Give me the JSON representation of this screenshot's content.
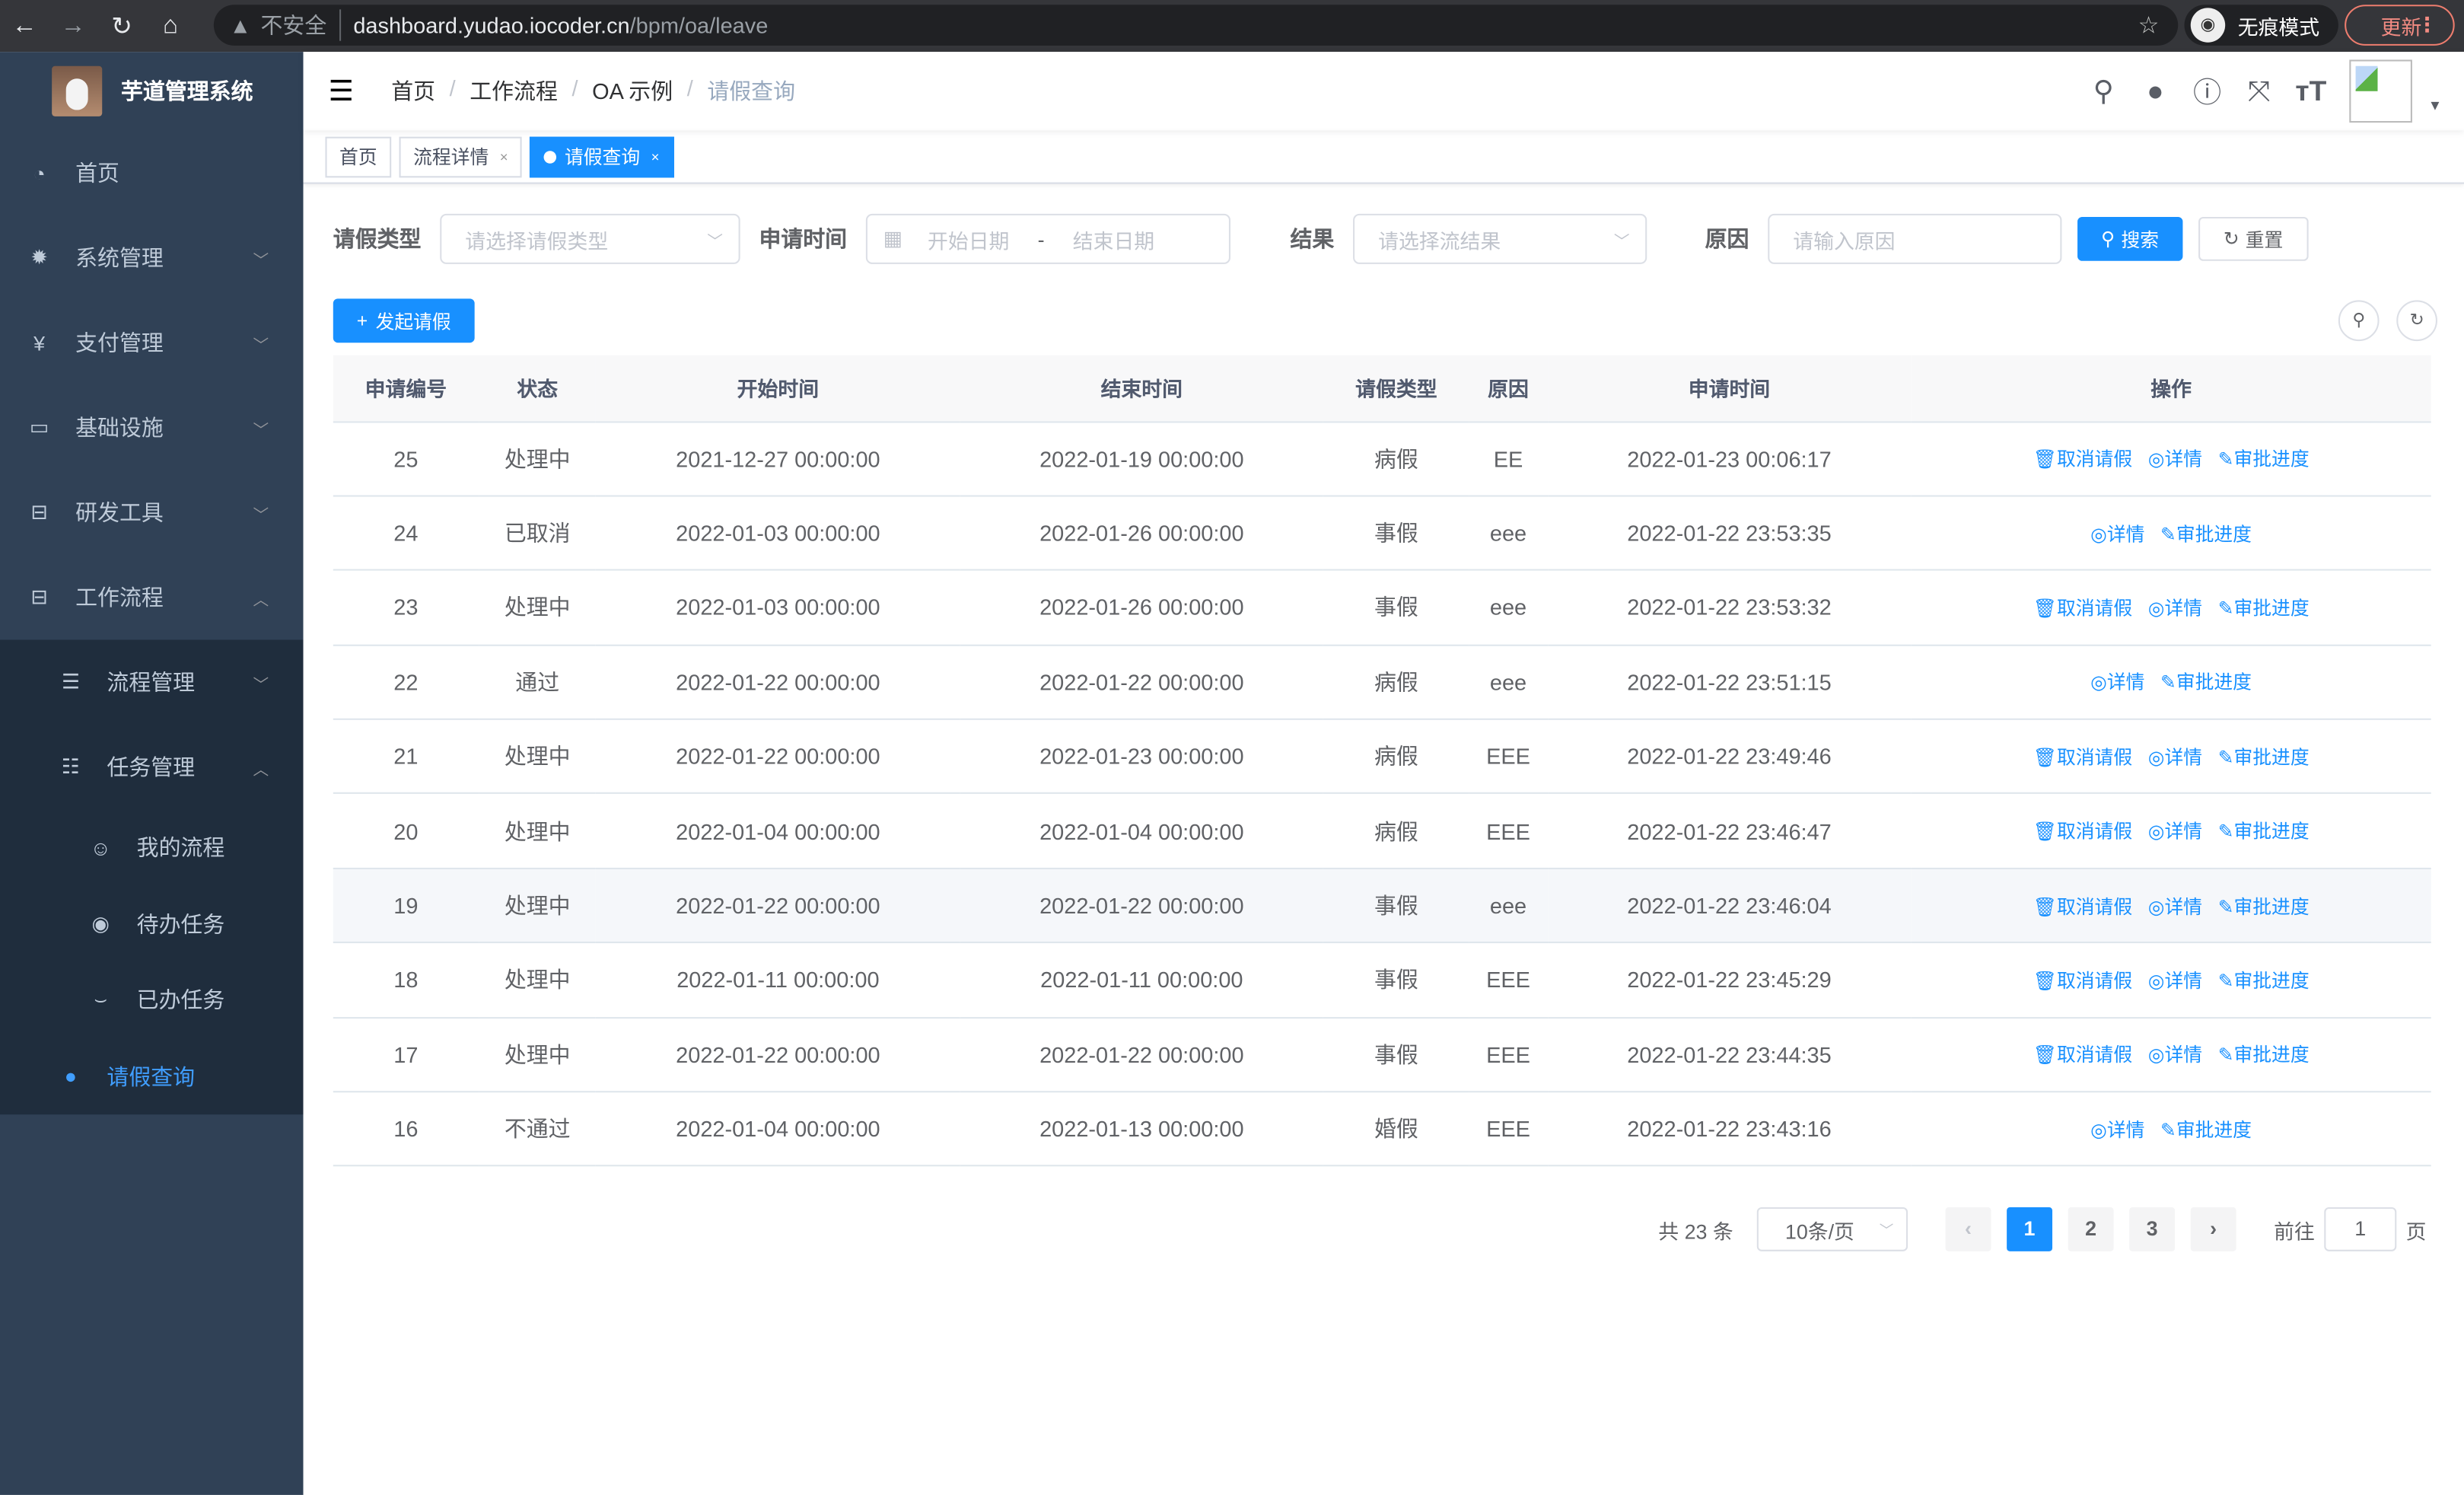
{
  "browser": {
    "insecure": "不安全",
    "url_host": "dashboard.yudao.iocoder.cn",
    "url_path": "/bpm/oa/leave",
    "incognito": "无痕模式",
    "update": "更新"
  },
  "sidebar": {
    "title": "芋道管理系统",
    "items": [
      {
        "label": "首页",
        "icon": "dashboard-icon"
      },
      {
        "label": "系统管理",
        "icon": "gear-icon"
      },
      {
        "label": "支付管理",
        "icon": "yen-icon"
      },
      {
        "label": "基础设施",
        "icon": "monitor-icon"
      },
      {
        "label": "研发工具",
        "icon": "toolbox-icon"
      },
      {
        "label": "工作流程",
        "icon": "toolbox-icon"
      }
    ],
    "sub": [
      {
        "label": "流程管理"
      },
      {
        "label": "任务管理"
      }
    ],
    "tasks": [
      {
        "label": "我的流程"
      },
      {
        "label": "待办任务"
      },
      {
        "label": "已办任务"
      }
    ],
    "active": {
      "label": "请假查询"
    }
  },
  "breadcrumb": [
    "首页",
    "工作流程",
    "OA 示例",
    "请假查询"
  ],
  "tags": [
    "首页",
    "流程详情",
    "请假查询"
  ],
  "filter": {
    "type_label": "请假类型",
    "type_ph": "请选择请假类型",
    "time_label": "申请时间",
    "start_ph": "开始日期",
    "sep": "-",
    "end_ph": "结束日期",
    "result_label": "结果",
    "result_ph": "请选择流结果",
    "reason_label": "原因",
    "reason_ph": "请输入原因",
    "search": "搜索",
    "reset": "重置"
  },
  "add_button": "发起请假",
  "table": {
    "headers": [
      "申请编号",
      "状态",
      "开始时间",
      "结束时间",
      "请假类型",
      "原因",
      "申请时间",
      "操作"
    ],
    "rows": [
      [
        "25",
        "处理中",
        "2021-12-27 00:00:00",
        "2022-01-19 00:00:00",
        "病假",
        "EE",
        "2022-01-23 00:06:17",
        true
      ],
      [
        "24",
        "已取消",
        "2022-01-03 00:00:00",
        "2022-01-26 00:00:00",
        "事假",
        "eee",
        "2022-01-22 23:53:35",
        false
      ],
      [
        "23",
        "处理中",
        "2022-01-03 00:00:00",
        "2022-01-26 00:00:00",
        "事假",
        "eee",
        "2022-01-22 23:53:32",
        true
      ],
      [
        "22",
        "通过",
        "2022-01-22 00:00:00",
        "2022-01-22 00:00:00",
        "病假",
        "eee",
        "2022-01-22 23:51:15",
        false
      ],
      [
        "21",
        "处理中",
        "2022-01-22 00:00:00",
        "2022-01-23 00:00:00",
        "病假",
        "EEE",
        "2022-01-22 23:49:46",
        true
      ],
      [
        "20",
        "处理中",
        "2022-01-04 00:00:00",
        "2022-01-04 00:00:00",
        "病假",
        "EEE",
        "2022-01-22 23:46:47",
        true
      ],
      [
        "19",
        "处理中",
        "2022-01-22 00:00:00",
        "2022-01-22 00:00:00",
        "事假",
        "eee",
        "2022-01-22 23:46:04",
        true
      ],
      [
        "18",
        "处理中",
        "2022-01-11 00:00:00",
        "2022-01-11 00:00:00",
        "事假",
        "EEE",
        "2022-01-22 23:45:29",
        true
      ],
      [
        "17",
        "处理中",
        "2022-01-22 00:00:00",
        "2022-01-22 00:00:00",
        "事假",
        "EEE",
        "2022-01-22 23:44:35",
        true
      ],
      [
        "16",
        "不通过",
        "2022-01-04 00:00:00",
        "2022-01-13 00:00:00",
        "婚假",
        "EEE",
        "2022-01-22 23:43:16",
        false
      ]
    ],
    "actions": {
      "cancel": "取消请假",
      "detail": "详情",
      "progress": "审批进度"
    }
  },
  "pagination": {
    "total": "共 23 条",
    "page_size": "10条/页",
    "pages": [
      "1",
      "2",
      "3"
    ],
    "current": "1",
    "goto": "前往",
    "goto_value": "1",
    "page_unit": "页"
  },
  "colors": {
    "primary": "#1890ff",
    "sidebar": "#304156",
    "submenu": "#1f2d3d"
  }
}
